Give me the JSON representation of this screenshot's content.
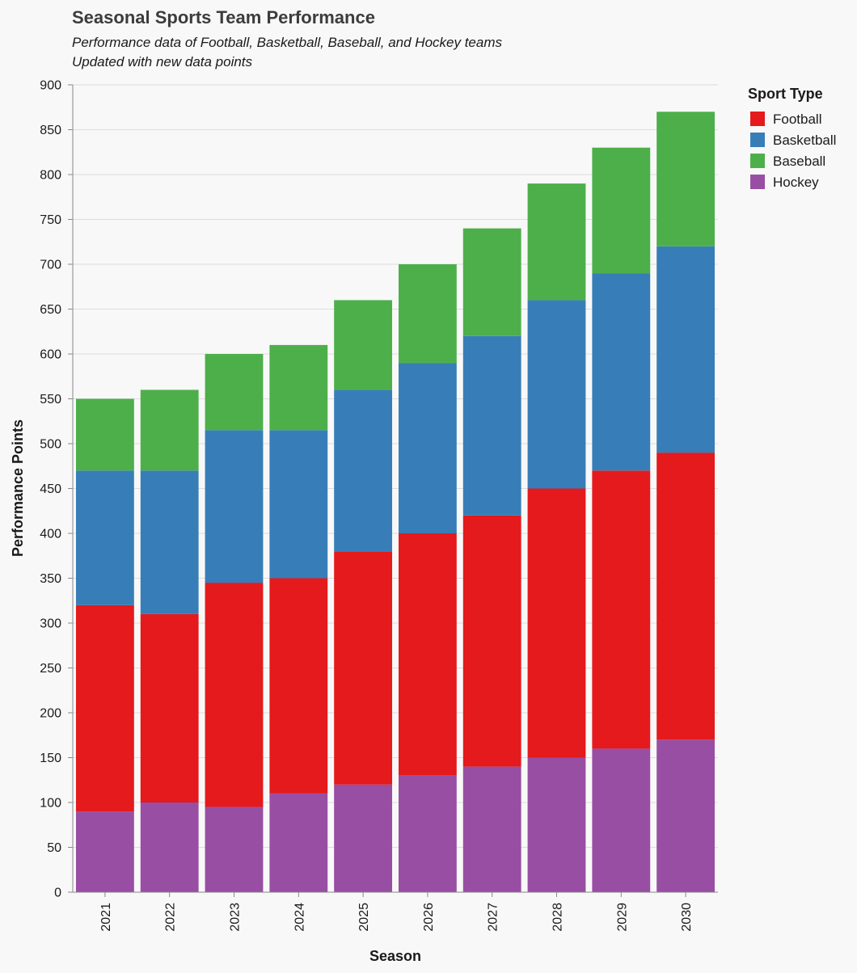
{
  "chart_data": {
    "type": "bar",
    "stacked": true,
    "title": "Seasonal Sports Team Performance",
    "subtitle": [
      "Performance data of Football, Basketball, Baseball, and Hockey teams",
      "Updated with new data points"
    ],
    "xlabel": "Season",
    "ylabel": "Performance Points",
    "ylim": [
      0,
      900
    ],
    "yticks": [
      0,
      50,
      100,
      150,
      200,
      250,
      300,
      350,
      400,
      450,
      500,
      550,
      600,
      650,
      700,
      750,
      800,
      850,
      900
    ],
    "grid": true,
    "legend": {
      "title": "Sport Type",
      "placement": "right"
    },
    "categories": [
      "2021",
      "2022",
      "2023",
      "2024",
      "2025",
      "2026",
      "2027",
      "2028",
      "2029",
      "2030"
    ],
    "series": [
      {
        "name": "Hockey",
        "color": "#984ea3",
        "values": [
          90,
          100,
          95,
          110,
          120,
          130,
          140,
          150,
          160,
          170
        ]
      },
      {
        "name": "Football",
        "color": "#e41a1c",
        "values": [
          230,
          210,
          250,
          240,
          260,
          270,
          280,
          300,
          310,
          320
        ]
      },
      {
        "name": "Basketball",
        "color": "#377eb8",
        "values": [
          150,
          160,
          170,
          165,
          180,
          190,
          200,
          210,
          220,
          230
        ]
      },
      {
        "name": "Baseball",
        "color": "#4daf4a",
        "values": [
          80,
          90,
          85,
          95,
          100,
          110,
          120,
          130,
          140,
          150
        ]
      }
    ],
    "legend_order": [
      "Football",
      "Basketball",
      "Baseball",
      "Hockey"
    ]
  }
}
